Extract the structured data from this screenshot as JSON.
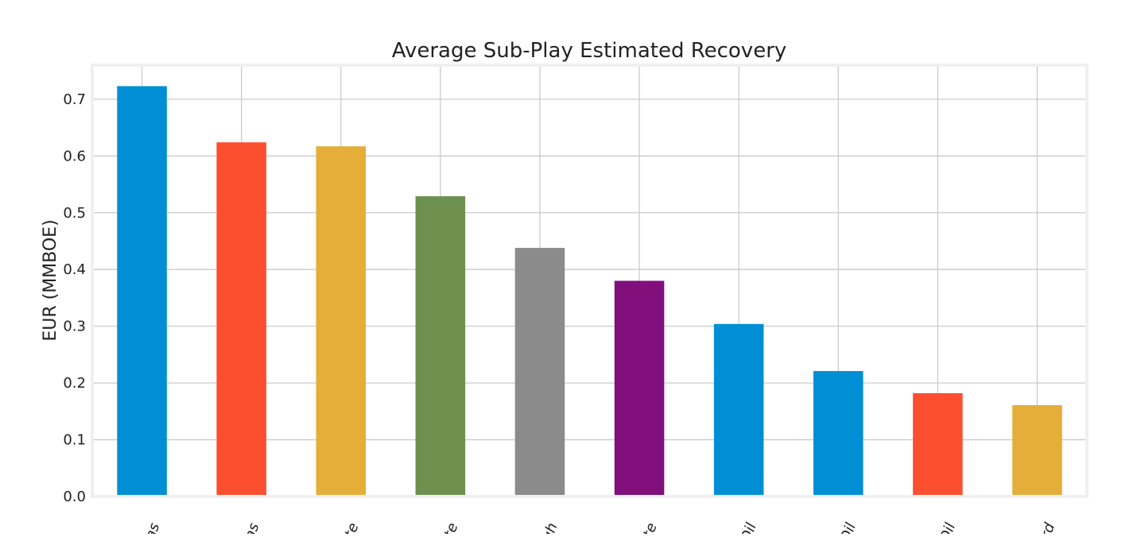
{
  "chart_data": {
    "type": "bar",
    "title": "Average Sub-Play Estimated Recovery",
    "xlabel": "",
    "ylabel": "EUR (MMBOE)",
    "ylim": [
      0,
      0.76
    ],
    "yticks": [
      0.0,
      0.1,
      0.2,
      0.3,
      0.4,
      0.5,
      0.6,
      0.7
    ],
    "ytick_labels": [
      "0.0",
      "0.1",
      "0.2",
      "0.3",
      "0.4",
      "0.5",
      "0.6",
      "0.7"
    ],
    "grid": true,
    "categories": [
      "Gas",
      "Gas",
      "sate",
      "sate",
      "ough",
      "sate",
      "k Oil",
      "t Oil",
      "k Oil",
      "Ford"
    ],
    "values": [
      0.723,
      0.624,
      0.617,
      0.529,
      0.438,
      0.38,
      0.304,
      0.221,
      0.182,
      0.161
    ],
    "colors": [
      "#008fd5",
      "#fc4f30",
      "#e5ae38",
      "#6d904f",
      "#8b8b8b",
      "#810f7c",
      "#008fd5",
      "#008fd5",
      "#fc4f30",
      "#e5ae38"
    ],
    "background": "#ffffff",
    "grid_color": "#cbcbcb",
    "frame_color": "#f0f0f0"
  }
}
